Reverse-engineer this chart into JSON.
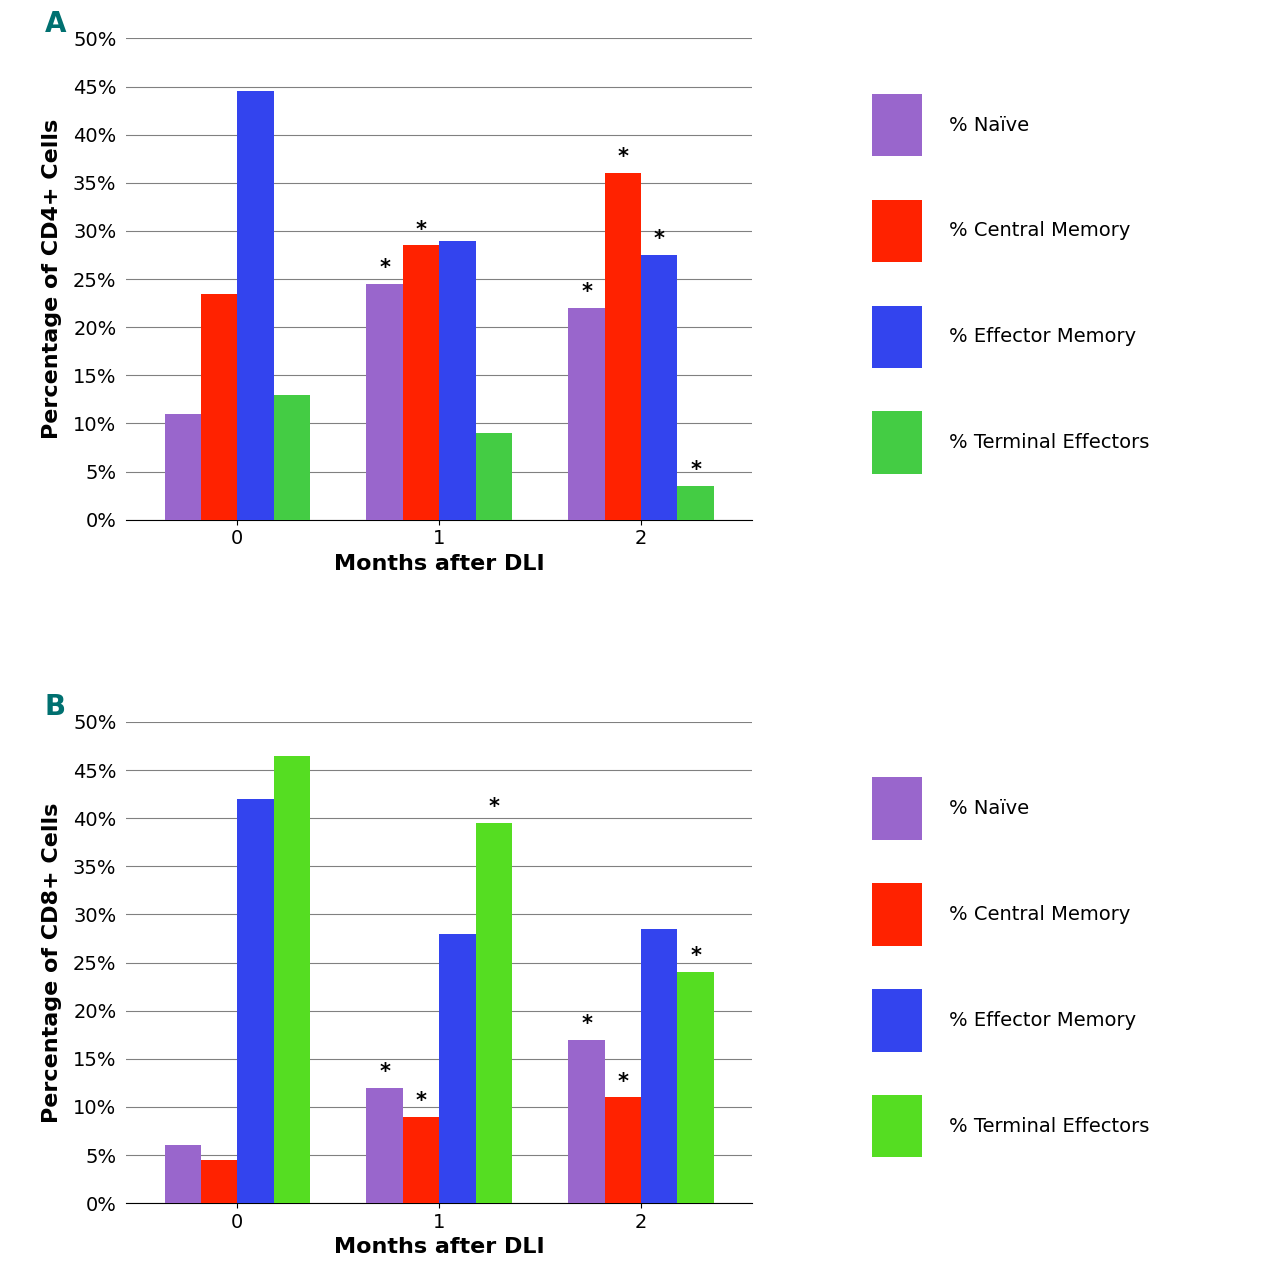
{
  "panel_A": {
    "title_label": "A",
    "ylabel": "Percentage of CD4+ Cells",
    "xlabel": "Months after DLI",
    "months": [
      0,
      1,
      2
    ],
    "naive": [
      11,
      24.5,
      22
    ],
    "central_memory": [
      23.5,
      28.5,
      36
    ],
    "effector_memory": [
      44.5,
      29,
      27.5
    ],
    "terminal_eff": [
      13,
      9,
      3.5
    ],
    "star_naive": [
      false,
      true,
      true
    ],
    "star_central": [
      false,
      true,
      true
    ],
    "star_effector": [
      false,
      false,
      true
    ],
    "star_terminal": [
      false,
      false,
      true
    ]
  },
  "panel_B": {
    "title_label": "B",
    "ylabel": "Percentage of CD8+ Cells",
    "xlabel": "Months after DLI",
    "months": [
      0,
      1,
      2
    ],
    "naive": [
      6,
      12,
      17
    ],
    "central_memory": [
      4.5,
      9,
      11
    ],
    "effector_memory": [
      42,
      28,
      28.5
    ],
    "terminal_eff": [
      46.5,
      39.5,
      24
    ],
    "star_naive": [
      false,
      true,
      true
    ],
    "star_central": [
      false,
      true,
      true
    ],
    "star_effector": [
      false,
      false,
      false
    ],
    "star_terminal": [
      false,
      true,
      true
    ]
  },
  "colors": {
    "naive": "#9966CC",
    "central_memory": "#FF2200",
    "effector_memory": "#3344EE",
    "terminal_eff_A": "#44CC44",
    "terminal_eff_B": "#55DD22"
  },
  "legend_labels": [
    "% Naïve",
    "% Central Memory",
    "% Effector Memory",
    "% Terminal Effectors"
  ],
  "ylim": [
    0,
    50
  ],
  "yticks": [
    0,
    5,
    10,
    15,
    20,
    25,
    30,
    35,
    40,
    45,
    50
  ],
  "bar_width": 0.18,
  "label_fontsize": 16,
  "tick_fontsize": 14,
  "legend_fontsize": 14,
  "panel_label_fontsize": 20,
  "star_fontsize": 15,
  "background_color": "#FFFFFF"
}
